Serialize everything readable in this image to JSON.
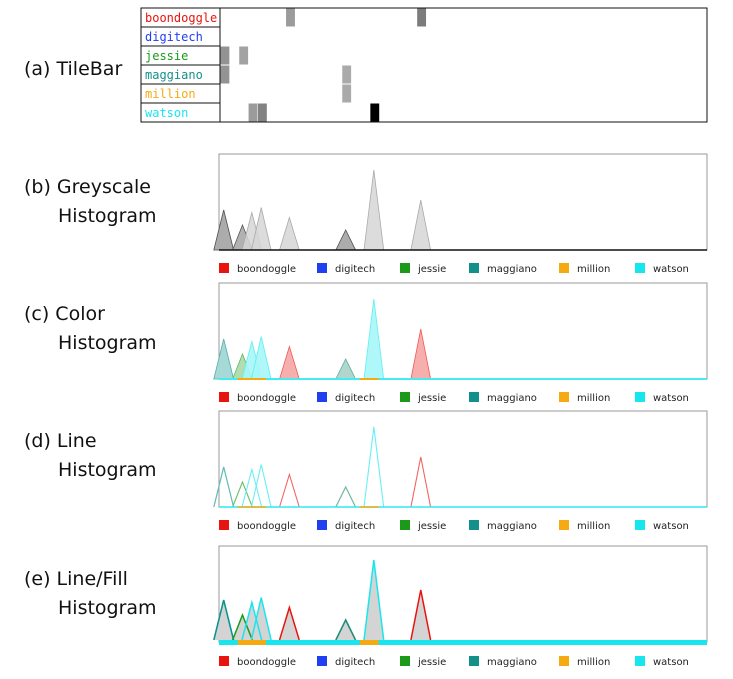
{
  "terms": [
    {
      "name": "boondoggle",
      "color": "#e8140f"
    },
    {
      "name": "digitech",
      "color": "#1f3ff0"
    },
    {
      "name": "jessie",
      "color": "#1a9a18"
    },
    {
      "name": "maggiano",
      "color": "#14908a"
    },
    {
      "name": "million",
      "color": "#f5aa12"
    },
    {
      "name": "watson",
      "color": "#18e6ee"
    }
  ],
  "panels": {
    "a": {
      "lines": [
        "(a) TileBar"
      ]
    },
    "b": {
      "lines": [
        "(b) Greyscale",
        "Histogram"
      ]
    },
    "c": {
      "lines": [
        "(c) Color",
        "Histogram"
      ]
    },
    "d": {
      "lines": [
        "(d) Line",
        "Histogram"
      ]
    },
    "e": {
      "lines": [
        "(e) Line/Fill",
        "Histogram"
      ]
    }
  },
  "segments": 52,
  "tilebar": {
    "max_count": 3,
    "tiles": [
      {
        "term": 0,
        "segment": 7,
        "count": 1
      },
      {
        "term": 0,
        "segment": 21,
        "count": 1.4
      },
      {
        "term": 2,
        "segment": 0,
        "count": 1.1
      },
      {
        "term": 2,
        "segment": 2,
        "count": 0.9
      },
      {
        "term": 3,
        "segment": 0,
        "count": 1.1
      },
      {
        "term": 3,
        "segment": 13,
        "count": 0.8
      },
      {
        "term": 4,
        "segment": 13,
        "count": 0.8
      },
      {
        "term": 5,
        "segment": 3,
        "count": 1
      },
      {
        "term": 5,
        "segment": 4,
        "count": 1.3
      },
      {
        "term": 5,
        "segment": 16,
        "count": 3
      }
    ]
  },
  "histogram": {
    "max_total": 3.6,
    "peaks": [
      {
        "term": 5,
        "segment": 0,
        "value": 1.6
      },
      {
        "term": 3,
        "segment": 0,
        "value": 1.6
      },
      {
        "term": 2,
        "segment": 2,
        "value": 1.0
      },
      {
        "term": 5,
        "segment": 3,
        "value": 1.5
      },
      {
        "term": 5,
        "segment": 4,
        "value": 1.7
      },
      {
        "term": 0,
        "segment": 7,
        "value": 1.3
      },
      {
        "term": 4,
        "segment": 13,
        "value": 0.8
      },
      {
        "term": 3,
        "segment": 13,
        "value": 0.8
      },
      {
        "term": 5,
        "segment": 16,
        "value": 3.2
      },
      {
        "term": 0,
        "segment": 21,
        "value": 2.0
      }
    ],
    "baseline_ranges": [
      {
        "term": 4,
        "start": 2,
        "end": 5
      },
      {
        "term": 4,
        "start": 15,
        "end": 17
      }
    ]
  },
  "legend_order": [
    0,
    1,
    2,
    3,
    4,
    5
  ]
}
